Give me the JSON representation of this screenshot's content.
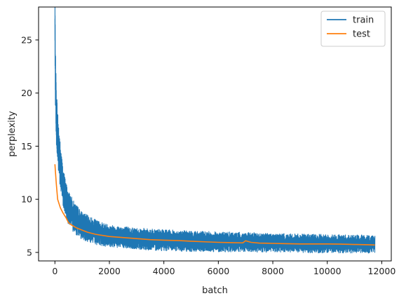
{
  "chart_data": {
    "type": "line",
    "title": "",
    "xlabel": "batch",
    "ylabel": "perplexity",
    "xlim": [
      -600,
      12350
    ],
    "ylim": [
      4.2,
      28.1
    ],
    "xticks": [
      0,
      2000,
      4000,
      6000,
      8000,
      10000,
      12000
    ],
    "xtick_labels": [
      "0",
      "2000",
      "4000",
      "6000",
      "8000",
      "10000",
      "12000"
    ],
    "yticks": [
      5,
      10,
      15,
      20,
      25
    ],
    "ytick_labels": [
      "5",
      "10",
      "15",
      "20",
      "25"
    ],
    "grid": false,
    "legend_position": "top-right",
    "series": [
      {
        "name": "train",
        "color": "#1f77b4",
        "style": "noisy",
        "x": [
          0,
          20,
          50,
          100,
          150,
          200,
          300,
          400,
          500,
          700,
          1000,
          1500,
          2000,
          3000,
          4000,
          5000,
          6000,
          7000,
          8000,
          9000,
          10000,
          11000,
          11750
        ],
        "y": [
          27.0,
          21.0,
          18.0,
          15.8,
          14.3,
          13.0,
          11.2,
          10.0,
          9.2,
          8.3,
          7.5,
          6.9,
          6.55,
          6.3,
          6.15,
          6.05,
          6.0,
          5.95,
          5.9,
          5.85,
          5.82,
          5.8,
          5.78
        ],
        "band": [
          [
            0,
            3.0
          ],
          [
            300,
            1.8
          ],
          [
            500,
            1.6
          ],
          [
            1000,
            1.3
          ],
          [
            2000,
            1.05
          ],
          [
            4000,
            1.0
          ],
          [
            6000,
            0.95
          ],
          [
            8000,
            0.9
          ],
          [
            11750,
            0.85
          ]
        ]
      },
      {
        "name": "test",
        "color": "#ff7f0e",
        "style": "line",
        "x": [
          0,
          50,
          100,
          150,
          200,
          300,
          400,
          500,
          600,
          800,
          1000,
          1200,
          1500,
          2000,
          2500,
          3000,
          3500,
          4000,
          4500,
          5000,
          5500,
          6000,
          6500,
          6900,
          7000,
          7200,
          7500,
          8000,
          8500,
          9000,
          9500,
          10000,
          10500,
          11000,
          11500,
          11750
        ],
        "y": [
          13.3,
          11.5,
          10.0,
          9.6,
          9.2,
          8.7,
          8.3,
          7.8,
          7.6,
          7.3,
          7.1,
          6.9,
          6.7,
          6.5,
          6.4,
          6.3,
          6.2,
          6.15,
          6.12,
          6.05,
          6.0,
          5.95,
          5.92,
          5.9,
          6.1,
          5.95,
          5.88,
          5.85,
          5.82,
          5.8,
          5.8,
          5.8,
          5.78,
          5.75,
          5.72,
          5.7
        ]
      }
    ]
  }
}
